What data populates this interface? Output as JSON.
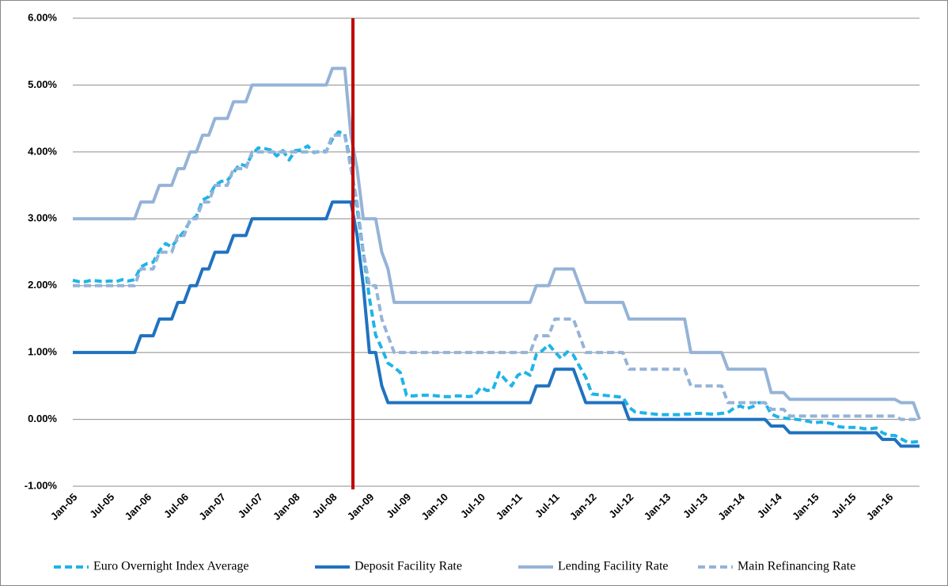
{
  "chart_data": {
    "type": "line",
    "categories": [
      "Jan-05",
      null,
      null,
      null,
      null,
      null,
      "Jul-05",
      null,
      null,
      null,
      null,
      null,
      "Jan-06",
      null,
      null,
      null,
      null,
      null,
      "Jul-06",
      null,
      null,
      null,
      null,
      null,
      "Jan-07",
      null,
      null,
      null,
      null,
      null,
      "Jul-07",
      null,
      null,
      null,
      null,
      null,
      "Jan-08",
      null,
      null,
      null,
      null,
      null,
      "Jul-08",
      null,
      null,
      null,
      null,
      null,
      "Jan-09",
      null,
      null,
      null,
      null,
      null,
      "Jul-09",
      null,
      null,
      null,
      null,
      null,
      "Jan-10",
      null,
      null,
      null,
      null,
      null,
      "Jul-10",
      null,
      null,
      null,
      null,
      null,
      "Jan-11",
      null,
      null,
      null,
      null,
      null,
      "Jul-11",
      null,
      null,
      null,
      null,
      null,
      "Jan-12",
      null,
      null,
      null,
      null,
      null,
      "Jul-12",
      null,
      null,
      null,
      null,
      null,
      "Jan-13",
      null,
      null,
      null,
      null,
      null,
      "Jul-13",
      null,
      null,
      null,
      null,
      null,
      "Jan-14",
      null,
      null,
      null,
      null,
      null,
      "Jul-14",
      null,
      null,
      null,
      null,
      null,
      "Jan-15",
      null,
      null,
      null,
      null,
      null,
      "Jul-15",
      null,
      null,
      null,
      null,
      null,
      "Jan-16",
      null,
      null,
      null,
      null,
      null
    ],
    "series": [
      {
        "name": "Euro Overnight Index Average",
        "color": "#1fb4e8",
        "dashed": true,
        "values": [
          2.08,
          2.06,
          2.06,
          2.08,
          2.07,
          2.06,
          2.07,
          2.06,
          2.09,
          2.07,
          2.09,
          2.28,
          2.33,
          2.35,
          2.52,
          2.63,
          2.58,
          2.7,
          2.81,
          2.97,
          3.04,
          3.28,
          3.33,
          3.5,
          3.56,
          3.57,
          3.69,
          3.82,
          3.79,
          3.96,
          4.06,
          4.05,
          4.03,
          3.94,
          4.02,
          3.88,
          4.02,
          4.03,
          4.09,
          3.99,
          4.01,
          4.01,
          4.19,
          4.3,
          4.27,
          3.82,
          3.15,
          2.49,
          1.81,
          1.26,
          1.06,
          0.84,
          0.78,
          0.7,
          0.36,
          0.35,
          0.36,
          0.36,
          0.36,
          0.35,
          0.34,
          0.34,
          0.35,
          0.35,
          0.34,
          0.35,
          0.48,
          0.43,
          0.45,
          0.7,
          0.59,
          0.5,
          0.66,
          0.71,
          0.66,
          0.97,
          1.03,
          1.12,
          1.01,
          0.91,
          1.01,
          0.96,
          0.79,
          0.63,
          0.38,
          0.37,
          0.36,
          0.35,
          0.34,
          0.33,
          0.18,
          0.11,
          0.1,
          0.09,
          0.08,
          0.07,
          0.07,
          0.07,
          0.07,
          0.08,
          0.08,
          0.09,
          0.09,
          0.08,
          0.08,
          0.09,
          0.1,
          0.17,
          0.2,
          0.16,
          0.19,
          0.25,
          0.25,
          0.08,
          0.04,
          0.02,
          0.01,
          0.0,
          -0.01,
          -0.03,
          -0.05,
          -0.04,
          -0.05,
          -0.07,
          -0.11,
          -0.12,
          -0.12,
          -0.12,
          -0.14,
          -0.14,
          -0.13,
          -0.2,
          -0.24,
          -0.24,
          -0.29,
          -0.34,
          -0.34,
          -0.33
        ]
      },
      {
        "name": "Deposit Facility Rate",
        "color": "#1f72c0",
        "dashed": false,
        "values": [
          1.0,
          1.0,
          1.0,
          1.0,
          1.0,
          1.0,
          1.0,
          1.0,
          1.0,
          1.0,
          1.0,
          1.25,
          1.25,
          1.25,
          1.5,
          1.5,
          1.5,
          1.75,
          1.75,
          2.0,
          2.0,
          2.25,
          2.25,
          2.5,
          2.5,
          2.5,
          2.75,
          2.75,
          2.75,
          3.0,
          3.0,
          3.0,
          3.0,
          3.0,
          3.0,
          3.0,
          3.0,
          3.0,
          3.0,
          3.0,
          3.0,
          3.0,
          3.25,
          3.25,
          3.25,
          3.25,
          2.75,
          2.0,
          1.0,
          1.0,
          0.5,
          0.25,
          0.25,
          0.25,
          0.25,
          0.25,
          0.25,
          0.25,
          0.25,
          0.25,
          0.25,
          0.25,
          0.25,
          0.25,
          0.25,
          0.25,
          0.25,
          0.25,
          0.25,
          0.25,
          0.25,
          0.25,
          0.25,
          0.25,
          0.25,
          0.5,
          0.5,
          0.5,
          0.75,
          0.75,
          0.75,
          0.75,
          0.5,
          0.25,
          0.25,
          0.25,
          0.25,
          0.25,
          0.25,
          0.25,
          0.0,
          0.0,
          0.0,
          0.0,
          0.0,
          0.0,
          0.0,
          0.0,
          0.0,
          0.0,
          0.0,
          0.0,
          0.0,
          0.0,
          0.0,
          0.0,
          0.0,
          0.0,
          0.0,
          0.0,
          0.0,
          0.0,
          0.0,
          -0.1,
          -0.1,
          -0.1,
          -0.2,
          -0.2,
          -0.2,
          -0.2,
          -0.2,
          -0.2,
          -0.2,
          -0.2,
          -0.2,
          -0.2,
          -0.2,
          -0.2,
          -0.2,
          -0.2,
          -0.2,
          -0.3,
          -0.3,
          -0.3,
          -0.4,
          -0.4,
          -0.4,
          -0.4
        ]
      },
      {
        "name": "Lending Facility Rate",
        "color": "#95b3d7",
        "dashed": false,
        "values": [
          3.0,
          3.0,
          3.0,
          3.0,
          3.0,
          3.0,
          3.0,
          3.0,
          3.0,
          3.0,
          3.0,
          3.25,
          3.25,
          3.25,
          3.5,
          3.5,
          3.5,
          3.75,
          3.75,
          4.0,
          4.0,
          4.25,
          4.25,
          4.5,
          4.5,
          4.5,
          4.75,
          4.75,
          4.75,
          5.0,
          5.0,
          5.0,
          5.0,
          5.0,
          5.0,
          5.0,
          5.0,
          5.0,
          5.0,
          5.0,
          5.0,
          5.0,
          5.25,
          5.25,
          5.25,
          4.25,
          3.75,
          3.0,
          3.0,
          3.0,
          2.5,
          2.25,
          1.75,
          1.75,
          1.75,
          1.75,
          1.75,
          1.75,
          1.75,
          1.75,
          1.75,
          1.75,
          1.75,
          1.75,
          1.75,
          1.75,
          1.75,
          1.75,
          1.75,
          1.75,
          1.75,
          1.75,
          1.75,
          1.75,
          1.75,
          2.0,
          2.0,
          2.0,
          2.25,
          2.25,
          2.25,
          2.25,
          2.0,
          1.75,
          1.75,
          1.75,
          1.75,
          1.75,
          1.75,
          1.75,
          1.5,
          1.5,
          1.5,
          1.5,
          1.5,
          1.5,
          1.5,
          1.5,
          1.5,
          1.5,
          1.0,
          1.0,
          1.0,
          1.0,
          1.0,
          1.0,
          0.75,
          0.75,
          0.75,
          0.75,
          0.75,
          0.75,
          0.75,
          0.4,
          0.4,
          0.4,
          0.3,
          0.3,
          0.3,
          0.3,
          0.3,
          0.3,
          0.3,
          0.3,
          0.3,
          0.3,
          0.3,
          0.3,
          0.3,
          0.3,
          0.3,
          0.3,
          0.3,
          0.3,
          0.25,
          0.25,
          0.25,
          0.0
        ]
      },
      {
        "name": "Main Refinancing Rate",
        "color": "#95b3d7",
        "dashed": true,
        "values": [
          2.0,
          2.0,
          2.0,
          2.0,
          2.0,
          2.0,
          2.0,
          2.0,
          2.0,
          2.0,
          2.0,
          2.25,
          2.25,
          2.25,
          2.5,
          2.5,
          2.5,
          2.75,
          2.75,
          3.0,
          3.0,
          3.25,
          3.25,
          3.5,
          3.5,
          3.5,
          3.75,
          3.75,
          3.75,
          4.0,
          4.0,
          4.0,
          4.0,
          4.0,
          4.0,
          4.0,
          4.0,
          4.0,
          4.0,
          4.0,
          4.0,
          4.0,
          4.25,
          4.25,
          4.25,
          3.75,
          3.25,
          2.5,
          2.0,
          2.0,
          1.5,
          1.25,
          1.0,
          1.0,
          1.0,
          1.0,
          1.0,
          1.0,
          1.0,
          1.0,
          1.0,
          1.0,
          1.0,
          1.0,
          1.0,
          1.0,
          1.0,
          1.0,
          1.0,
          1.0,
          1.0,
          1.0,
          1.0,
          1.0,
          1.0,
          1.25,
          1.25,
          1.25,
          1.5,
          1.5,
          1.5,
          1.5,
          1.25,
          1.0,
          1.0,
          1.0,
          1.0,
          1.0,
          1.0,
          1.0,
          0.75,
          0.75,
          0.75,
          0.75,
          0.75,
          0.75,
          0.75,
          0.75,
          0.75,
          0.75,
          0.5,
          0.5,
          0.5,
          0.5,
          0.5,
          0.5,
          0.25,
          0.25,
          0.25,
          0.25,
          0.25,
          0.25,
          0.25,
          0.15,
          0.15,
          0.15,
          0.05,
          0.05,
          0.05,
          0.05,
          0.05,
          0.05,
          0.05,
          0.05,
          0.05,
          0.05,
          0.05,
          0.05,
          0.05,
          0.05,
          0.05,
          0.05,
          0.05,
          0.05,
          0.0,
          0.0,
          0.0,
          0.0
        ]
      }
    ],
    "ylim": [
      -1,
      6
    ],
    "yticks": [
      {
        "value": -1,
        "label": "-1.00%"
      },
      {
        "value": 0,
        "label": "0.00%"
      },
      {
        "value": 1,
        "label": "1.00%"
      },
      {
        "value": 2,
        "label": "2.00%"
      },
      {
        "value": 3,
        "label": "3.00%"
      },
      {
        "value": 4,
        "label": "4.00%"
      },
      {
        "value": 5,
        "label": "5.00%"
      },
      {
        "value": 6,
        "label": "6.00%"
      }
    ],
    "grid": true,
    "legend": "bottom"
  }
}
